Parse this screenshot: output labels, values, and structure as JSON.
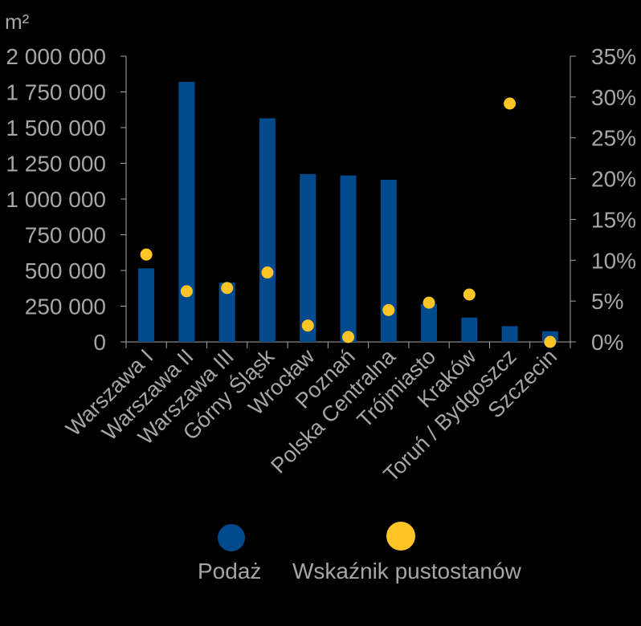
{
  "chart_data": {
    "type": "bar",
    "unit_label": "m²",
    "categories": [
      "Warszawa I",
      "Warszawa II",
      "Warszawa III",
      "Górny Śląsk",
      "Wrocław",
      "Poznań",
      "Polska Centralna",
      "Trójmiasto",
      "Kraków",
      "Toruń / Bydgoszcz",
      "Szczecin"
    ],
    "series": [
      {
        "name": "Podaż",
        "kind": "bar",
        "axis": "left",
        "color": "#004a8d",
        "values": [
          515000,
          1820000,
          415000,
          1565000,
          1175000,
          1165000,
          1135000,
          265000,
          170000,
          110000,
          75000
        ]
      },
      {
        "name": "Wskaźnik pustostanów",
        "kind": "scatter",
        "axis": "right",
        "color": "#ffc425",
        "values": [
          10.7,
          6.2,
          6.6,
          8.5,
          2.0,
          0.6,
          3.9,
          4.8,
          5.8,
          29.2,
          0.0
        ]
      }
    ],
    "y_left": {
      "min": 0,
      "max": 2000000,
      "ticks": [
        0,
        250000,
        500000,
        750000,
        1000000,
        1250000,
        1500000,
        1750000,
        2000000
      ],
      "tick_labels": [
        "0",
        "250 000",
        "500 000",
        "750 000",
        "1 000 000",
        "1 250 000",
        "1 500 000",
        "1 750 000",
        "2 000 000"
      ]
    },
    "y_right": {
      "min": 0,
      "max": 35,
      "ticks": [
        0,
        5,
        10,
        15,
        20,
        25,
        30,
        35
      ],
      "tick_labels": [
        "0%",
        "5%",
        "10%",
        "15%",
        "20%",
        "25%",
        "30%",
        "35%"
      ]
    },
    "grid": false,
    "legend_position": "bottom"
  }
}
